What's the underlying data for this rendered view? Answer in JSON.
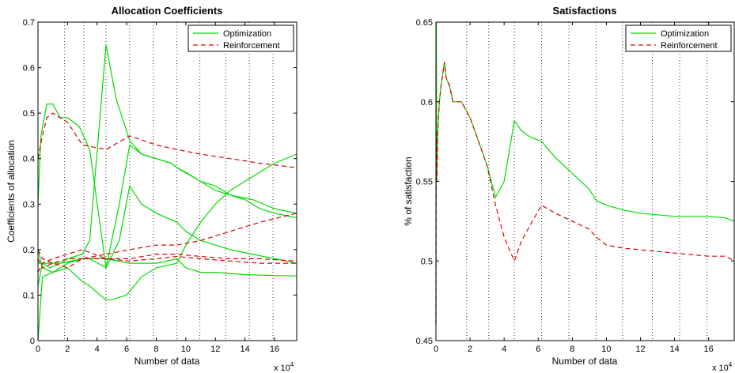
{
  "colors": {
    "optimization": "#00dd00",
    "reinforcement": "#dd0000",
    "axes": "#000000",
    "grid": "#333333"
  },
  "chart_data": [
    {
      "type": "line",
      "title": "Allocation Coefficients",
      "xlabel": "Number of data",
      "ylabel": "Coefficients of allocation",
      "x_multiplier_label": "x 10",
      "x_multiplier_exp": "4",
      "xlim": [
        0,
        17.5
      ],
      "ylim": [
        0,
        0.7
      ],
      "xticks": [
        0,
        2,
        4,
        6,
        8,
        10,
        12,
        14,
        16
      ],
      "yticks": [
        0,
        0.1,
        0.2,
        0.3,
        0.4,
        0.5,
        0.6,
        0.7
      ],
      "xtick_labels": [
        "0",
        "2",
        "4",
        "6",
        "8",
        "10",
        "12",
        "14",
        "16"
      ],
      "ytick_labels": [
        "0",
        "0.1",
        "0.2",
        "0.3",
        "0.4",
        "0.5",
        "0.6",
        "0.7"
      ],
      "vertical_dotted_lines_x": [
        1.8,
        3.1,
        4.6,
        6.2,
        7.8,
        9.4,
        10.95,
        12.7,
        14.3,
        15.9
      ],
      "legend": {
        "position": "top-right",
        "entries": [
          "Optimization",
          "Reinforcement"
        ]
      },
      "series": [
        {
          "name": "Optimization",
          "style": "solid",
          "x": [
            0,
            0.2,
            0.6,
            1.0,
            1.5,
            2.0,
            2.8,
            3.5,
            4.6,
            5.5,
            6.2,
            7.0,
            8.0,
            9.0,
            9.4,
            11.0,
            12.0,
            13.0,
            14.5,
            16.0,
            17.5
          ],
          "y": [
            0.3,
            0.45,
            0.52,
            0.52,
            0.49,
            0.49,
            0.47,
            0.42,
            0.16,
            0.3,
            0.43,
            0.41,
            0.4,
            0.39,
            0.38,
            0.35,
            0.33,
            0.32,
            0.31,
            0.29,
            0.28
          ]
        },
        {
          "name": "Optimization",
          "style": "solid",
          "x": [
            0,
            0.3,
            0.8,
            1.5,
            2.0,
            3.0,
            3.5,
            4.6,
            5.3,
            6.2,
            7.0,
            8.0,
            9.0,
            9.4,
            10.0,
            11.0,
            12.0,
            13.0,
            14.0,
            15.0,
            16.0,
            17.5
          ],
          "y": [
            0.12,
            0.17,
            0.16,
            0.17,
            0.18,
            0.19,
            0.22,
            0.65,
            0.53,
            0.44,
            0.41,
            0.4,
            0.39,
            0.38,
            0.37,
            0.35,
            0.34,
            0.32,
            0.31,
            0.29,
            0.28,
            0.27
          ]
        },
        {
          "name": "Optimization",
          "style": "solid",
          "x": [
            0,
            0.3,
            1.0,
            2.0,
            3.0,
            3.5,
            4.6,
            5.5,
            6.2,
            7.0,
            8.0,
            9.4,
            10.0,
            11.0,
            12.0,
            13.0,
            14.5,
            16.0,
            17.5
          ],
          "y": [
            0.2,
            0.16,
            0.15,
            0.17,
            0.18,
            0.18,
            0.16,
            0.22,
            0.34,
            0.3,
            0.28,
            0.26,
            0.24,
            0.22,
            0.21,
            0.2,
            0.19,
            0.18,
            0.17
          ]
        },
        {
          "name": "Optimization",
          "style": "solid",
          "x": [
            0,
            0.3,
            1.0,
            2.0,
            3.0,
            3.5,
            4.2,
            4.6,
            5.0,
            6.0,
            6.5,
            7.0,
            8.0,
            9.4,
            10.0,
            11.0,
            12.0,
            13.0,
            14.0,
            15.0,
            16.0,
            17.5
          ],
          "y": [
            0.0,
            0.14,
            0.15,
            0.16,
            0.13,
            0.12,
            0.1,
            0.09,
            0.09,
            0.1,
            0.12,
            0.14,
            0.16,
            0.17,
            0.21,
            0.26,
            0.3,
            0.33,
            0.35,
            0.37,
            0.39,
            0.41
          ]
        },
        {
          "name": "Optimization",
          "style": "solid",
          "x": [
            0,
            0.5,
            1.5,
            3.0,
            4.6,
            6.2,
            8.0,
            9.4,
            10.0,
            11.0,
            12.0,
            14.0,
            16.0,
            17.5
          ],
          "y": [
            0.17,
            0.17,
            0.17,
            0.18,
            0.18,
            0.17,
            0.17,
            0.18,
            0.16,
            0.15,
            0.15,
            0.145,
            0.143,
            0.142
          ]
        },
        {
          "name": "Reinforcement",
          "style": "dashed",
          "x": [
            0,
            0.3,
            0.6,
            1.0,
            1.5,
            2.0,
            3.0,
            4.6,
            6.2,
            8.0,
            9.4,
            11.0,
            13.0,
            15.0,
            17.5
          ],
          "y": [
            0.4,
            0.45,
            0.49,
            0.5,
            0.49,
            0.48,
            0.43,
            0.42,
            0.45,
            0.43,
            0.42,
            0.41,
            0.4,
            0.39,
            0.38
          ]
        },
        {
          "name": "Reinforcement",
          "style": "dashed",
          "x": [
            0,
            0.3,
            1.0,
            2.0,
            3.0,
            4.6,
            6.2,
            8.0,
            9.4,
            11.0,
            13.0,
            15.0,
            17.5
          ],
          "y": [
            0.18,
            0.16,
            0.17,
            0.16,
            0.18,
            0.19,
            0.2,
            0.21,
            0.21,
            0.22,
            0.24,
            0.26,
            0.28
          ]
        },
        {
          "name": "Reinforcement",
          "style": "dashed",
          "x": [
            0,
            0.3,
            1.0,
            2.0,
            3.0,
            4.6,
            6.2,
            8.0,
            9.4,
            11.0,
            13.0,
            15.0,
            17.5
          ],
          "y": [
            0.15,
            0.17,
            0.18,
            0.19,
            0.2,
            0.18,
            0.18,
            0.19,
            0.19,
            0.185,
            0.18,
            0.18,
            0.175
          ]
        },
        {
          "name": "Reinforcement",
          "style": "dashed",
          "x": [
            0,
            0.3,
            1.0,
            2.0,
            3.0,
            4.6,
            6.2,
            8.0,
            9.4,
            11.0,
            13.0,
            15.0,
            17.5
          ],
          "y": [
            0.2,
            0.18,
            0.17,
            0.18,
            0.18,
            0.18,
            0.175,
            0.18,
            0.185,
            0.18,
            0.175,
            0.17,
            0.17
          ]
        }
      ]
    },
    {
      "type": "line",
      "title": "Satisfactions",
      "xlabel": "Number of data",
      "ylabel": "% of satisfaction",
      "x_multiplier_label": "x 10",
      "x_multiplier_exp": "4",
      "xlim": [
        0,
        17.5
      ],
      "ylim": [
        0.45,
        0.65
      ],
      "xticks": [
        0,
        2,
        4,
        6,
        8,
        10,
        12,
        14,
        16
      ],
      "yticks": [
        0.45,
        0.5,
        0.55,
        0.6,
        0.65
      ],
      "xtick_labels": [
        "0",
        "2",
        "4",
        "6",
        "8",
        "10",
        "12",
        "14",
        "16"
      ],
      "ytick_labels": [
        "0.45",
        "0.5",
        "0.55",
        "0.6",
        "0.65"
      ],
      "vertical_dotted_lines_x": [
        1.8,
        3.1,
        4.6,
        6.2,
        7.8,
        9.4,
        10.95,
        12.7,
        14.3,
        15.9
      ],
      "legend": {
        "position": "top-right",
        "entries": [
          "Optimization",
          "Reinforcement"
        ]
      },
      "series": [
        {
          "name": "Optimization",
          "style": "solid",
          "x": [
            0,
            0.02,
            0.05,
            0.1,
            0.2,
            0.3,
            0.5,
            0.6,
            0.8,
            1.0,
            1.5,
            2.0,
            2.5,
            3.0,
            3.5,
            4.0,
            4.6,
            5.0,
            5.5,
            6.2,
            7.0,
            8.0,
            9.0,
            9.4,
            10.0,
            11.0,
            12.0,
            13.0,
            14.0,
            15.0,
            16.0,
            17.0,
            17.5
          ],
          "y": [
            0.46,
            0.65,
            0.55,
            0.58,
            0.6,
            0.61,
            0.625,
            0.615,
            0.61,
            0.6,
            0.6,
            0.59,
            0.575,
            0.56,
            0.54,
            0.55,
            0.588,
            0.582,
            0.578,
            0.575,
            0.565,
            0.555,
            0.545,
            0.538,
            0.535,
            0.532,
            0.53,
            0.529,
            0.528,
            0.528,
            0.528,
            0.527,
            0.525
          ]
        },
        {
          "name": "Reinforcement",
          "style": "dashed",
          "x": [
            0,
            0.02,
            0.05,
            0.1,
            0.2,
            0.3,
            0.5,
            0.6,
            0.8,
            1.0,
            1.5,
            2.0,
            2.5,
            3.0,
            3.5,
            4.0,
            4.6,
            5.0,
            5.5,
            6.2,
            7.0,
            8.0,
            9.0,
            9.4,
            10.0,
            11.0,
            12.0,
            13.0,
            14.0,
            15.0,
            16.0,
            17.0,
            17.5
          ],
          "y": [
            0.46,
            0.58,
            0.55,
            0.58,
            0.6,
            0.61,
            0.625,
            0.615,
            0.61,
            0.6,
            0.6,
            0.59,
            0.575,
            0.56,
            0.535,
            0.515,
            0.5,
            0.512,
            0.522,
            0.535,
            0.53,
            0.525,
            0.52,
            0.515,
            0.51,
            0.508,
            0.507,
            0.506,
            0.505,
            0.504,
            0.503,
            0.503,
            0.5
          ]
        }
      ]
    }
  ]
}
